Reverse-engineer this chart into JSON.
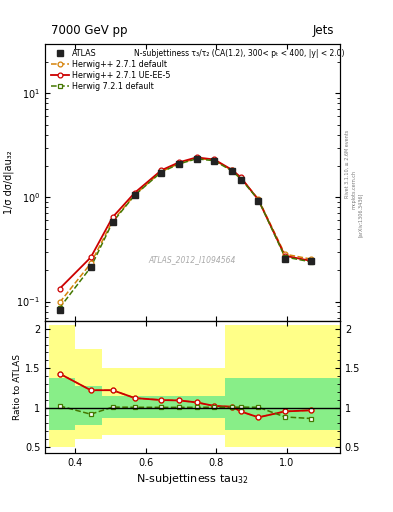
{
  "title_top": "7000 GeV pp",
  "title_right": "Jets",
  "annotation": "N-subjettiness τ₃/τ₂ (CA(1.2), 300< pₜ < 400, |y| < 2.0)",
  "watermark": "ATLAS_2012_I1094564",
  "rivet_label": "Rivet 3.1.10, ≥ 2.6M events",
  "arxiv_label": "[arXiv:1306.3436]",
  "mcplots_label": "mcplots.cern.ch",
  "ylabel_main": "1/σ dσ/d|au₃₂",
  "ylabel_ratio": "Ratio to ATLAS",
  "x_pts": [
    0.356,
    0.444,
    0.506,
    0.569,
    0.644,
    0.694,
    0.744,
    0.794,
    0.844,
    0.869,
    0.919,
    0.994,
    1.069
  ],
  "atlas_y": [
    0.083,
    0.215,
    0.575,
    1.05,
    1.73,
    2.08,
    2.32,
    2.24,
    1.78,
    1.48,
    0.93,
    0.255,
    0.245
  ],
  "herwig271_def_y": [
    0.098,
    0.232,
    0.595,
    1.06,
    1.77,
    2.11,
    2.37,
    2.28,
    1.82,
    1.54,
    0.96,
    0.285,
    0.255
  ],
  "herwig271_ue_y": [
    0.133,
    0.265,
    0.645,
    1.11,
    1.82,
    2.17,
    2.42,
    2.31,
    1.84,
    1.56,
    0.945,
    0.275,
    0.245
  ],
  "herwig721_def_y": [
    0.087,
    0.213,
    0.578,
    1.053,
    1.748,
    2.095,
    2.345,
    2.248,
    1.798,
    1.505,
    0.948,
    0.268,
    0.24
  ],
  "ratio_herwig271_def": [
    1.43,
    1.22,
    1.22,
    1.12,
    1.095,
    1.09,
    1.065,
    1.02,
    1.01,
    0.95,
    0.875,
    0.95,
    0.965
  ],
  "ratio_herwig271_ue": [
    1.43,
    1.22,
    1.22,
    1.12,
    1.095,
    1.09,
    1.065,
    1.02,
    1.01,
    0.95,
    0.875,
    0.95,
    0.965
  ],
  "ratio_herwig721_def": [
    1.02,
    0.915,
    1.005,
    1.003,
    1.002,
    1.002,
    1.003,
    1.003,
    1.003,
    1.005,
    1.003,
    0.88,
    0.86
  ],
  "xbins_edges": [
    0.325,
    0.4,
    0.475,
    0.55,
    0.625,
    0.675,
    0.725,
    0.775,
    0.825,
    0.85,
    0.9,
    0.975,
    1.05,
    1.15
  ],
  "yellow_top": [
    2.05,
    1.75,
    1.5,
    1.5,
    1.5,
    1.5,
    1.5,
    1.5,
    2.05,
    2.05,
    2.05,
    2.05,
    2.05
  ],
  "yellow_bot": [
    0.5,
    0.6,
    0.65,
    0.65,
    0.65,
    0.65,
    0.65,
    0.65,
    0.5,
    0.5,
    0.5,
    0.5,
    0.5
  ],
  "green_top": [
    1.38,
    1.27,
    1.15,
    1.15,
    1.15,
    1.15,
    1.15,
    1.15,
    1.38,
    1.38,
    1.38,
    1.38,
    1.38
  ],
  "green_bot": [
    0.72,
    0.78,
    0.87,
    0.87,
    0.87,
    0.87,
    0.87,
    0.87,
    0.72,
    0.72,
    0.72,
    0.72,
    0.72
  ],
  "xlim": [
    0.315,
    1.15
  ],
  "ylim_main": [
    0.065,
    30
  ],
  "ylim_ratio": [
    0.42,
    2.1
  ],
  "yticks_ratio": [
    0.5,
    1.0,
    1.5,
    2.0
  ],
  "ytick_labels_ratio": [
    "0.5",
    "1",
    "1.5",
    "2"
  ],
  "xticks": [
    0.4,
    0.6,
    0.8,
    1.0
  ],
  "color_atlas": "#222222",
  "color_herwig271_def": "#d4820a",
  "color_herwig271_ue": "#cc0000",
  "color_herwig721_def": "#447700",
  "color_yellow": "#ffff88",
  "color_green": "#88ee88",
  "bg": "#ffffff"
}
